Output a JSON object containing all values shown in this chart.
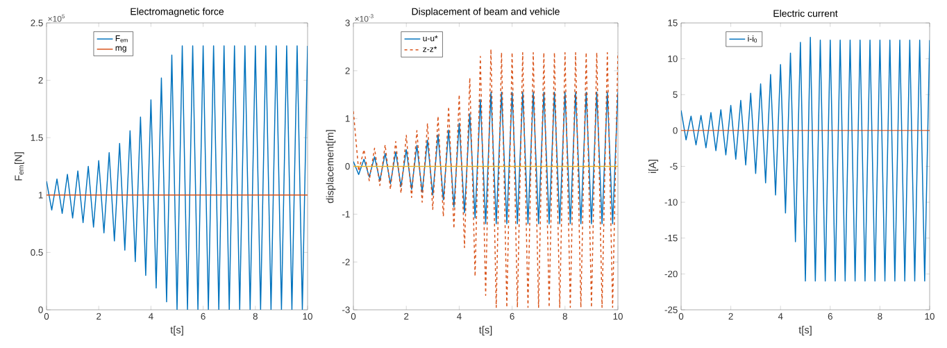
{
  "chart_data": [
    {
      "type": "line",
      "title": "Electromagnetic force",
      "xlabel": "t[s]",
      "ylabel": "F$_{em}$[N]",
      "annotations": [
        "×10$^{5}$"
      ],
      "x": [
        0,
        0.2,
        0.4,
        0.6,
        0.8,
        1,
        1.2,
        1.4,
        1.6,
        1.8,
        2,
        2.2,
        2.4,
        2.6,
        2.8,
        3,
        3.2,
        3.4,
        3.6,
        3.8,
        4,
        4.2,
        4.4,
        4.6,
        4.8,
        5,
        5.2,
        5.4,
        5.6,
        5.8,
        6,
        6.2,
        6.4,
        6.6,
        6.8,
        7,
        7.2,
        7.4,
        7.6,
        7.8,
        8,
        8.2,
        8.4,
        8.6,
        8.8,
        9,
        9.2,
        9.4,
        9.6,
        9.8,
        10
      ],
      "series": [
        {
          "name": "F$_{em}$",
          "color": "#0072bd",
          "line_style": "solid",
          "values": [
            1.12,
            0.87,
            1.14,
            0.84,
            1.18,
            0.8,
            1.21,
            0.76,
            1.25,
            0.72,
            1.3,
            0.67,
            1.37,
            0.6,
            1.45,
            0.52,
            1.56,
            0.42,
            1.68,
            0.3,
            1.83,
            0.19,
            2.02,
            0.07,
            2.22,
            0,
            2.3,
            0,
            2.3,
            0,
            2.3,
            0,
            2.3,
            0,
            2.3,
            0,
            2.3,
            0,
            2.3,
            0,
            2.3,
            0,
            2.3,
            0,
            2.3,
            0,
            2.3,
            0,
            2.3,
            0,
            2.3
          ]
        },
        {
          "name": "mg",
          "color": "#d95319",
          "line_style": "solid",
          "values": [
            1,
            1,
            1,
            1,
            1,
            1,
            1,
            1,
            1,
            1,
            1,
            1,
            1,
            1,
            1,
            1,
            1,
            1,
            1,
            1,
            1,
            1,
            1,
            1,
            1,
            1,
            1,
            1,
            1,
            1,
            1,
            1,
            1,
            1,
            1,
            1,
            1,
            1,
            1,
            1,
            1,
            1,
            1,
            1,
            1,
            1,
            1,
            1,
            1,
            1,
            1
          ]
        }
      ],
      "xlim": [
        0,
        10
      ],
      "ylim": [
        0,
        2.5
      ],
      "xticks": [
        0,
        2,
        4,
        6,
        8,
        10
      ],
      "yticks": [
        0,
        0.5,
        1,
        1.5,
        2,
        2.5
      ],
      "marker": "none",
      "legend": "top left"
    },
    {
      "type": "line",
      "title": "Displacement of beam and vehicle",
      "xlabel": "t[s]",
      "ylabel": "displacement[m]",
      "annotations": [
        "×10$^{-3}$"
      ],
      "x": [
        0,
        0.2,
        0.4,
        0.6,
        0.8,
        1,
        1.2,
        1.4,
        1.6,
        1.8,
        2,
        2.2,
        2.4,
        2.6,
        2.8,
        3,
        3.2,
        3.4,
        3.6,
        3.8,
        4,
        4.2,
        4.4,
        4.6,
        4.8,
        5,
        5.2,
        5.4,
        5.6,
        5.8,
        6,
        6.2,
        6.4,
        6.6,
        6.8,
        7,
        7.2,
        7.4,
        7.6,
        7.8,
        8,
        8.2,
        8.4,
        8.6,
        8.8,
        9,
        9.2,
        9.4,
        9.6,
        9.8,
        10
      ],
      "series": [
        {
          "name": "u-u*",
          "color": "#0072bd",
          "line_style": "solid",
          "values": [
            0.1,
            -0.17,
            0.15,
            -0.22,
            0.2,
            -0.3,
            0.27,
            -0.36,
            0.3,
            -0.42,
            0.35,
            -0.48,
            0.44,
            -0.54,
            0.55,
            -0.6,
            0.66,
            -0.7,
            0.76,
            -0.85,
            0.9,
            -0.97,
            1.1,
            -1.08,
            1.4,
            -1.2,
            1.55,
            -1.2,
            1.55,
            -1.2,
            1.55,
            -1.2,
            1.55,
            -1.2,
            1.55,
            -1.2,
            1.55,
            -1.2,
            1.55,
            -1.2,
            1.55,
            -1.2,
            1.55,
            -1.2,
            1.55,
            -1.2,
            1.55,
            -1.2,
            1.55,
            -1.2,
            1.55
          ]
        },
        {
          "name": "z-z*",
          "color": "#d95319",
          "line_style": "dashed",
          "values": [
            1.15,
            -0.1,
            0.35,
            -0.3,
            0.38,
            -0.4,
            0.45,
            -0.48,
            0.52,
            -0.56,
            0.65,
            -0.65,
            0.75,
            -0.75,
            0.9,
            -0.9,
            1.05,
            -1.05,
            1.25,
            -1.3,
            1.5,
            -1.7,
            1.85,
            -2.3,
            2.3,
            -2.7,
            2.45,
            -2.95,
            2.38,
            -2.95,
            2.38,
            -2.95,
            2.38,
            -2.95,
            2.38,
            -2.95,
            2.38,
            -2.95,
            2.38,
            -2.95,
            2.38,
            -2.95,
            2.38,
            -2.95,
            2.38,
            -2.95,
            2.38,
            -2.95,
            2.38,
            -2.95,
            2.38
          ]
        },
        {
          "color": "#edb120",
          "line_style": "solid",
          "values": [
            0,
            0,
            0,
            0,
            0,
            0,
            0,
            0,
            0,
            0,
            0,
            0,
            0,
            0,
            0,
            0,
            0,
            0,
            0,
            0,
            0,
            0,
            0,
            0,
            0,
            0,
            0,
            0,
            0,
            0,
            0,
            0,
            0,
            0,
            0,
            0,
            0,
            0,
            0,
            0,
            0,
            0,
            0,
            0,
            0,
            0,
            0,
            0,
            0,
            0,
            0
          ]
        }
      ],
      "xlim": [
        0,
        10
      ],
      "ylim": [
        -3,
        3
      ],
      "xticks": [
        0,
        2,
        4,
        6,
        8,
        10
      ],
      "yticks": [
        -3,
        -2,
        -1,
        0,
        1,
        2,
        3
      ],
      "marker": "none",
      "legend": "top left"
    },
    {
      "type": "line",
      "title": "Electric current",
      "xlabel": "t[s]",
      "ylabel": "i[A]",
      "x": [
        0,
        0.2,
        0.4,
        0.6,
        0.8,
        1,
        1.2,
        1.4,
        1.6,
        1.8,
        2,
        2.2,
        2.4,
        2.6,
        2.8,
        3,
        3.2,
        3.4,
        3.6,
        3.8,
        4,
        4.2,
        4.4,
        4.6,
        4.8,
        5,
        5.2,
        5.4,
        5.6,
        5.8,
        6,
        6.2,
        6.4,
        6.6,
        6.8,
        7,
        7.2,
        7.4,
        7.6,
        7.8,
        8,
        8.2,
        8.4,
        8.6,
        8.8,
        9,
        9.2,
        9.4,
        9.6,
        9.8,
        10
      ],
      "series": [
        {
          "name": "i-i$_{0}$",
          "color": "#0072bd",
          "line_style": "solid",
          "values": [
            2.8,
            -1.3,
            2.0,
            -2.0,
            2.1,
            -2.4,
            2.5,
            -2.8,
            2.9,
            -3.4,
            3.5,
            -4.0,
            4.2,
            -4.8,
            5.2,
            -6.0,
            6.5,
            -7.3,
            7.8,
            -9.0,
            9.2,
            -11.5,
            10.8,
            -15.5,
            12.3,
            -21,
            13,
            -21,
            12.6,
            -21,
            12.6,
            -21,
            12.6,
            -21,
            12.6,
            -21,
            12.6,
            -21,
            12.6,
            -21,
            12.6,
            -21,
            12.6,
            -21,
            12.6,
            -21,
            12.6,
            -21,
            12.6,
            -21,
            12.6
          ]
        },
        {
          "color": "#d95319",
          "line_style": "solid",
          "values": [
            0,
            0,
            0,
            0,
            0,
            0,
            0,
            0,
            0,
            0,
            0,
            0,
            0,
            0,
            0,
            0,
            0,
            0,
            0,
            0,
            0,
            0,
            0,
            0,
            0,
            0,
            0,
            0,
            0,
            0,
            0,
            0,
            0,
            0,
            0,
            0,
            0,
            0,
            0,
            0,
            0,
            0,
            0,
            0,
            0,
            0,
            0,
            0,
            0,
            0,
            0
          ]
        }
      ],
      "xlim": [
        0,
        10
      ],
      "ylim": [
        -25,
        15
      ],
      "xticks": [
        0,
        2,
        4,
        6,
        8,
        10
      ],
      "yticks": [
        -25,
        -20,
        -15,
        -10,
        -5,
        0,
        5,
        10,
        15
      ],
      "marker": "none",
      "legend": "top left"
    }
  ]
}
